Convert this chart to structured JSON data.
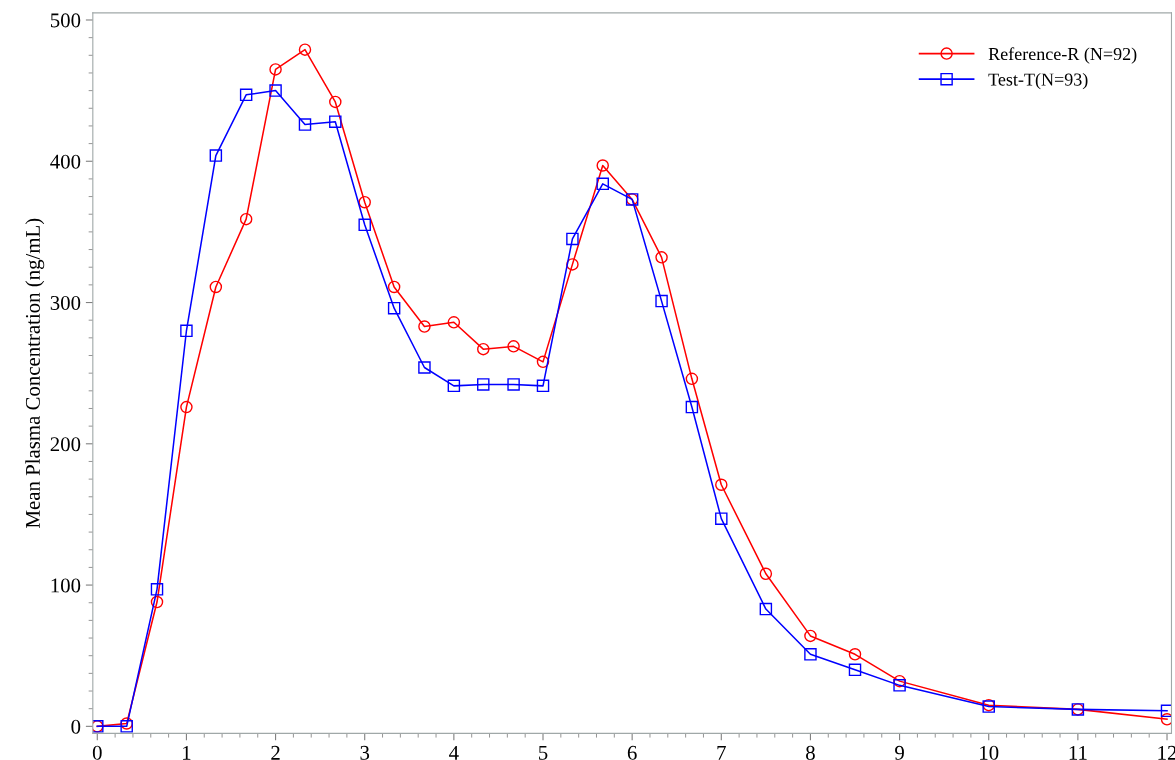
{
  "chart_data": {
    "type": "line",
    "ylabel": "Mean Plasma Concentration (ng/mL)",
    "xlim": [
      -0.05,
      12.05
    ],
    "ylim": [
      -5,
      505
    ],
    "xticks": [
      0,
      1,
      2,
      3,
      4,
      5,
      6,
      7,
      8,
      9,
      10,
      11,
      12
    ],
    "yticks": [
      0,
      100,
      200,
      300,
      400,
      500
    ],
    "grid": false,
    "legend": "top right",
    "line_style": "solid",
    "x": [
      0,
      0.33,
      0.67,
      1,
      1.33,
      1.67,
      2,
      2.33,
      2.67,
      3,
      3.33,
      3.67,
      4,
      4.33,
      4.67,
      5,
      5.33,
      5.67,
      6,
      6.33,
      6.67,
      7,
      7.5,
      8,
      8.5,
      9,
      10,
      11,
      12
    ],
    "series": [
      {
        "name": "Reference-R (N=92)",
        "color": "#ff0000",
        "marker": "circle",
        "values": [
          0,
          2,
          88,
          226,
          311,
          359,
          465,
          479,
          442,
          371,
          311,
          283,
          286,
          267,
          269,
          258,
          327,
          397,
          373,
          332,
          246,
          171,
          108,
          64,
          51,
          32,
          15,
          12,
          5
        ]
      },
      {
        "name": "Test-T(N=93)",
        "color": "#0000ff",
        "marker": "square",
        "values": [
          0,
          0,
          97,
          280,
          404,
          447,
          450,
          426,
          428,
          355,
          296,
          254,
          241,
          242,
          242,
          241,
          345,
          384,
          373,
          301,
          226,
          147,
          83,
          51,
          40,
          29,
          14,
          12,
          11
        ]
      }
    ]
  }
}
